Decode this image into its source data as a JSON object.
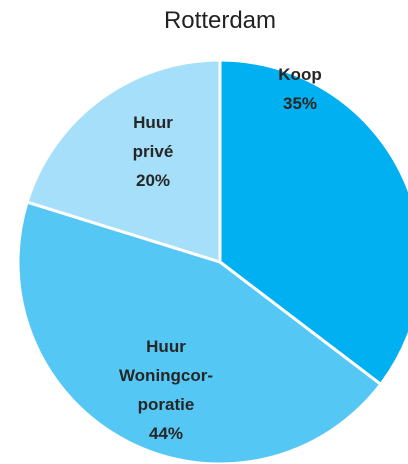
{
  "chart_data": {
    "type": "pie",
    "title": "Rotterdam",
    "categories": [
      [
        "Koop"
      ],
      [
        "Huur",
        "Woningcor-",
        "poratie"
      ],
      [
        "Huur",
        "privé"
      ]
    ],
    "values": [
      35,
      44,
      20
    ],
    "value_labels": [
      "35%",
      "44%",
      "20%"
    ],
    "colors": [
      "#00b0f0",
      "#55c7f5",
      "#a5dff9"
    ]
  }
}
